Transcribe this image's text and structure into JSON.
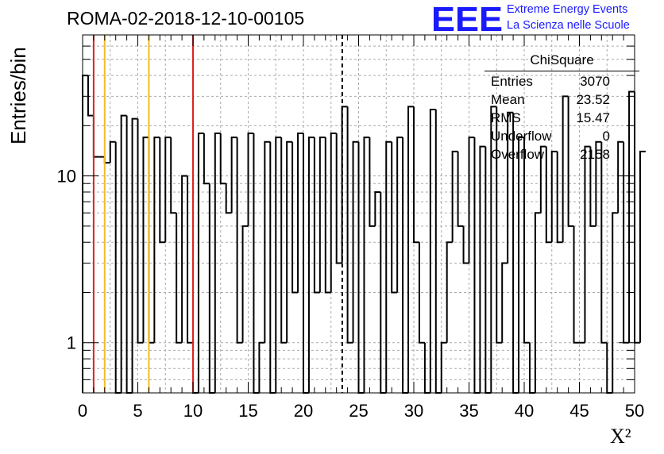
{
  "title": "ROMA-02-2018-12-10-00105",
  "logo": {
    "mark": "EEE",
    "line1": "Extreme Energy Events",
    "line2": "La Scienza nelle Scuole",
    "color": "#1a1aff"
  },
  "stats": {
    "name": "ChiSquare",
    "rows": [
      {
        "label": "Entries",
        "value": "3070"
      },
      {
        "label": "Mean",
        "value": "23.52"
      },
      {
        "label": "RMS",
        "value": "15.47"
      },
      {
        "label": "Underflow",
        "value": "0"
      },
      {
        "label": "Overflow",
        "value": "2158"
      }
    ]
  },
  "chart_data": {
    "type": "histogram",
    "title": "ROMA-02-2018-12-10-00105",
    "xlabel": "X²",
    "ylabel": "Entries/bin",
    "xlim": [
      0,
      50
    ],
    "ylim": [
      0.5,
      70
    ],
    "yscale": "log",
    "grid": true,
    "bin_width": 0.5,
    "x_ticks": [
      "0",
      "5",
      "10",
      "15",
      "20",
      "25",
      "30",
      "35",
      "40",
      "45",
      "50"
    ],
    "y_ticks": [
      "1",
      "10"
    ],
    "values": [
      40,
      23,
      13,
      13,
      12,
      16,
      0,
      23,
      0,
      22,
      1,
      17,
      1,
      17,
      4,
      17,
      6,
      1,
      10,
      1,
      0,
      18,
      9,
      0,
      18,
      9,
      6,
      17,
      1,
      5,
      18,
      0,
      1,
      16,
      0,
      17,
      1,
      16,
      2,
      18,
      0,
      17,
      2,
      17,
      2,
      18,
      3,
      26,
      1,
      16,
      0,
      17,
      5,
      8,
      0,
      16,
      2,
      17,
      0,
      26,
      4,
      1,
      0,
      25,
      0,
      1,
      4,
      14,
      5,
      3,
      17,
      0,
      15,
      0,
      26,
      1,
      3,
      24,
      0,
      17,
      1,
      0,
      6,
      15,
      4,
      14,
      4,
      30,
      5,
      1,
      1,
      15,
      5,
      16,
      1,
      0,
      6,
      16,
      1,
      32,
      1,
      14
    ],
    "vlines": [
      {
        "x": 1.0,
        "color": "#dd2222",
        "style": "solid"
      },
      {
        "x": 2.0,
        "color": "#f2bb2a",
        "style": "solid"
      },
      {
        "x": 6.0,
        "color": "#f2bb2a",
        "style": "solid"
      },
      {
        "x": 10.0,
        "color": "#dd2222",
        "style": "solid"
      },
      {
        "x": 23.52,
        "color": "#000000",
        "style": "dashed"
      }
    ],
    "legend_position": "top-right"
  }
}
